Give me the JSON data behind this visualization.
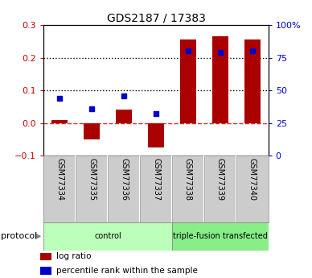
{
  "title": "GDS2187 / 17383",
  "samples": [
    "GSM77334",
    "GSM77335",
    "GSM77336",
    "GSM77337",
    "GSM77338",
    "GSM77339",
    "GSM77340"
  ],
  "log_ratio": [
    0.01,
    -0.05,
    0.04,
    -0.075,
    0.255,
    0.265,
    0.255
  ],
  "pct_right": [
    44,
    36,
    46,
    32,
    80,
    79,
    80
  ],
  "ylim_left": [
    -0.1,
    0.3
  ],
  "ylim_right": [
    0,
    100
  ],
  "yticks_left": [
    -0.1,
    0.0,
    0.1,
    0.2,
    0.3
  ],
  "yticks_right": [
    0,
    25,
    50,
    75,
    100
  ],
  "hlines": [
    0.1,
    0.2
  ],
  "bar_color": "#AA0000",
  "dot_color": "#0000CC",
  "zero_line_color": "#CC3333",
  "protocol_groups": [
    {
      "label": "control",
      "start": 0,
      "end": 4,
      "color": "#BBFFBB"
    },
    {
      "label": "triple-fusion transfected",
      "start": 4,
      "end": 7,
      "color": "#88EE88"
    }
  ],
  "protocol_label": "protocol",
  "legend_items": [
    {
      "label": "log ratio",
      "color": "#AA0000"
    },
    {
      "label": "percentile rank within the sample",
      "color": "#0000CC"
    }
  ],
  "bar_width": 0.5,
  "left_tick_color": "#CC0000",
  "right_tick_color": "#0000CC",
  "sample_box_color": "#CCCCCC",
  "sample_box_border": "#888888"
}
